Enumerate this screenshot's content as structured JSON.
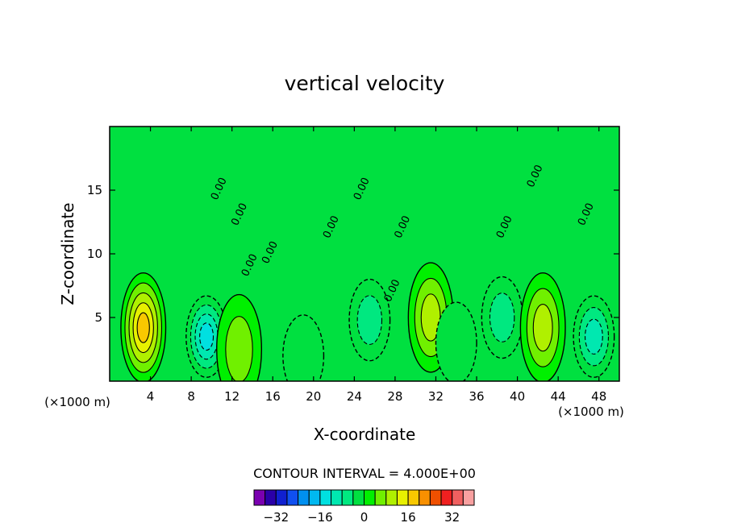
{
  "chart_data": {
    "type": "heatmap",
    "title": "vertical velocity",
    "xlabel": "X-coordinate",
    "ylabel": "Z-coordinate",
    "x_unit_left": "(×1000 m)",
    "x_unit_right": "(×1000 m)",
    "xlim": [
      0,
      50
    ],
    "ylim": [
      0,
      20
    ],
    "x_ticks": [
      4,
      8,
      12,
      16,
      20,
      24,
      28,
      32,
      36,
      40,
      44,
      48
    ],
    "y_ticks": [
      5,
      10,
      15
    ],
    "contour_interval_text": "CONTOUR INTERVAL = 4.000E+00",
    "contour_labels": [
      "0.00",
      "0.00",
      "0.00",
      "0.00",
      "0.00",
      "0.00",
      "0.00",
      "0.00",
      "0.00",
      "0.00",
      "0.00"
    ],
    "colorbar": {
      "levels": [
        -36,
        -32,
        -28,
        -24,
        -20,
        -16,
        -12,
        -8,
        -4,
        0,
        4,
        8,
        12,
        16,
        20,
        24,
        28,
        32,
        36
      ],
      "tick_values": [
        -32,
        -16,
        0,
        16,
        32
      ],
      "colors": [
        "#7a00b0",
        "#2a00a8",
        "#1020d0",
        "#1050f0",
        "#0090f0",
        "#00b8f0",
        "#00e0e0",
        "#00e8b0",
        "#00e880",
        "#00e040",
        "#00f000",
        "#70f000",
        "#b0f000",
        "#e8f000",
        "#f8c800",
        "#f89000",
        "#f05000",
        "#f02020",
        "#f06060",
        "#f8a0a0"
      ]
    },
    "features": [
      {
        "kind": "updraft",
        "x": 3.3,
        "z": 4.2,
        "peak": 22
      },
      {
        "kind": "downdraft",
        "x": 9.5,
        "z": 3.5,
        "peak": -16
      },
      {
        "kind": "updraft",
        "x": 12.7,
        "z": 2.5,
        "peak": 10
      },
      {
        "kind": "downdraft",
        "x": 19.0,
        "z": 2.0,
        "peak": -6
      },
      {
        "kind": "downdraft",
        "x": 25.5,
        "z": 4.8,
        "peak": -8
      },
      {
        "kind": "updraft",
        "x": 31.5,
        "z": 5.0,
        "peak": 12
      },
      {
        "kind": "downdraft",
        "x": 34.0,
        "z": 3.0,
        "peak": -6
      },
      {
        "kind": "downdraft",
        "x": 38.5,
        "z": 5.0,
        "peak": -8
      },
      {
        "kind": "updraft",
        "x": 42.5,
        "z": 4.2,
        "peak": 12
      },
      {
        "kind": "downdraft",
        "x": 47.5,
        "z": 3.5,
        "peak": -12
      }
    ]
  }
}
